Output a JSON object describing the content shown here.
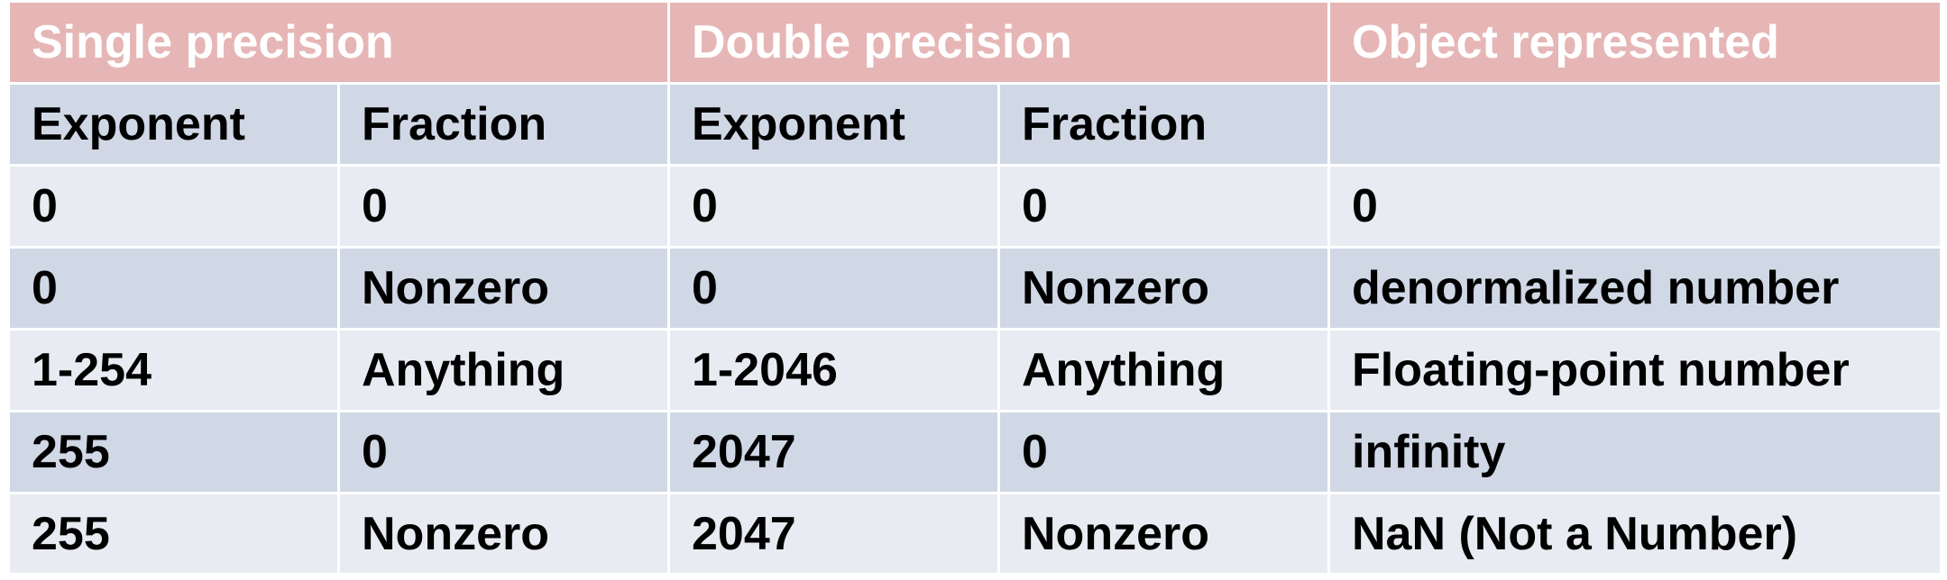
{
  "table": {
    "group_headers": [
      "Single precision",
      "Double precision",
      "Object represented"
    ],
    "sub_headers": [
      "Exponent",
      "Fraction",
      "Exponent",
      "Fraction",
      ""
    ],
    "rows": [
      [
        "0",
        "0",
        "0",
        "0",
        "0"
      ],
      [
        "0",
        "Nonzero",
        "0",
        "Nonzero",
        "denormalized number"
      ],
      [
        "1-254",
        "Anything",
        "1-2046",
        "Anything",
        "Floating-point number"
      ],
      [
        "255",
        "0",
        "2047",
        "0",
        "infinity"
      ],
      [
        "255",
        "Nonzero",
        "2047",
        "Nonzero",
        "NaN (Not a Number)"
      ]
    ]
  },
  "colors": {
    "group_header_bg": "#e6b6b6",
    "group_header_text": "#ffffff",
    "band_dark": "#d0d8e6",
    "band_light": "#e8ebf2",
    "body_text": "#000000"
  }
}
